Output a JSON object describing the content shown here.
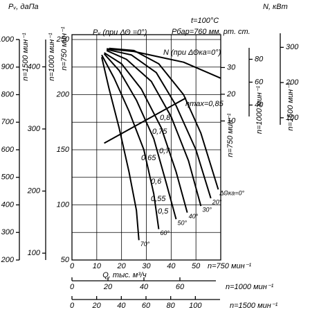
{
  "chart_data": {
    "type": "line",
    "y_label": "Pᵥ, даПа",
    "y2_label": "N, кВт",
    "x_label": "Q, тыс. м³/ч",
    "conditions": [
      "t=100°C",
      "Pбар=760 мм. рт. ст."
    ],
    "pressure_label": "Pᵥ (при ΔΘ =0°)",
    "speed_label": "n=750 мин⁻¹",
    "xlim": [
      0,
      60
    ],
    "xticks": [
      0,
      10,
      20,
      30,
      40,
      50
    ],
    "ylim": [
      50,
      250
    ],
    "yticks": [
      50,
      100,
      150,
      200,
      250
    ],
    "yminor": [
      75,
      125,
      175,
      225
    ],
    "y2lim": [
      0,
      41
    ],
    "y2ticks": [
      10,
      20,
      30
    ],
    "grid": true,
    "extra_axes": [
      {
        "side": "left",
        "label": "n=1500 мин⁻¹",
        "lim": [
          200,
          1000
        ],
        "ticks": [
          200,
          300,
          400,
          500,
          600,
          700,
          800,
          900,
          1000
        ]
      },
      {
        "side": "left",
        "label": "n=1000 мин⁻¹",
        "lim": [
          89,
          444
        ],
        "ticks": [
          100,
          200,
          300,
          400
        ]
      },
      {
        "side": "right",
        "label": "n=1000 мин⁻¹",
        "lim": [
          30,
          90
        ],
        "ticks": [
          40,
          60,
          80
        ]
      },
      {
        "side": "right",
        "label": "n=1500 мин⁻¹",
        "lim": [
          80,
          340
        ],
        "ticks": [
          100,
          200,
          300
        ]
      },
      {
        "side": "bottom",
        "label": "n=1000 мин⁻¹",
        "lim": [
          0,
          80
        ],
        "ticks": [
          0,
          20,
          40,
          60
        ]
      },
      {
        "side": "bottom",
        "label": "n=1500 мин⁻¹",
        "lim": [
          0,
          120
        ],
        "ticks": [
          0,
          20,
          40,
          60,
          80,
          100
        ]
      }
    ],
    "series": [
      {
        "name": "ΔΘка=0°",
        "color": "#000000",
        "x": [
          15,
          25,
          35,
          45,
          52,
          59
        ],
        "values": [
          242,
          240,
          228,
          200,
          165,
          114
        ]
      },
      {
        "name": "20°",
        "color": "#000000",
        "x": [
          14,
          24,
          34,
          42,
          50,
          56
        ],
        "values": [
          241,
          236,
          220,
          190,
          150,
          106
        ]
      },
      {
        "name": "30°",
        "color": "#000000",
        "x": [
          14,
          22,
          32,
          40,
          47,
          52
        ],
        "values": [
          240,
          232,
          212,
          180,
          140,
          99
        ]
      },
      {
        "name": "40°",
        "color": "#000000",
        "x": [
          13,
          20,
          28,
          36,
          42,
          46.5
        ],
        "values": [
          238,
          228,
          205,
          170,
          130,
          93
        ]
      },
      {
        "name": "50°",
        "color": "#000000",
        "x": [
          13,
          19,
          26,
          33,
          38,
          42
        ],
        "values": [
          237,
          222,
          195,
          160,
          120,
          87
        ]
      },
      {
        "name": "60°",
        "color": "#000000",
        "x": [
          12,
          17,
          23,
          29,
          33,
          35
        ],
        "values": [
          236,
          215,
          185,
          150,
          110,
          78
        ]
      },
      {
        "name": "70°",
        "color": "#000000",
        "x": [
          12,
          15,
          19,
          23,
          26,
          27
        ],
        "values": [
          234,
          205,
          170,
          130,
          95,
          68
        ]
      },
      {
        "name": "N (при ΔΘка=0°)",
        "color": "#000000",
        "axis": "y2",
        "x": [
          14,
          25,
          35,
          45,
          55,
          60
        ],
        "values": [
          37,
          36,
          34,
          32,
          28,
          26
        ]
      },
      {
        "name": "ηmax=0,85",
        "color": "#000000",
        "x": [
          13,
          46
        ],
        "values": [
          156,
          197
        ]
      }
    ],
    "annotations": [
      "0,8",
      "0,75",
      "0,7",
      "0,65",
      "0,6",
      "0,55",
      "0,5"
    ]
  }
}
